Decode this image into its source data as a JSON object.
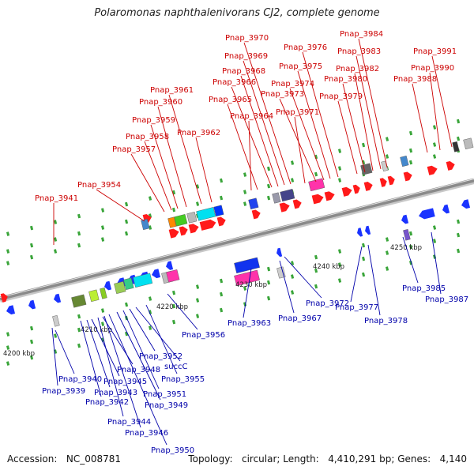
{
  "title": "Polaromonas naphthalenivorans CJ2, complete genome",
  "accession": {
    "label": "Accession:",
    "value": "NC_008781"
  },
  "topology": {
    "label": "Topology:",
    "value": "circular"
  },
  "length": {
    "label": "Length:",
    "value": "4,410,291 bp"
  },
  "genes": {
    "label": "Genes:",
    "value": "4,140"
  },
  "colors": {
    "forward_label": "#cc0000",
    "reverse_label": "#0000aa",
    "forward_gene": "#ff1a1a",
    "reverse_gene": "#1a33ff",
    "backbone": "#8a8a8a",
    "tick": "#3aa53a"
  },
  "scale_labels": [
    "4200 kbp",
    "4210 kbp",
    "4220 kbp",
    "4230 kbp",
    "4240 kbp",
    "4250 kbp"
  ],
  "forward_labels": [
    "Pnap_3941",
    "Pnap_3954",
    "Pnap_3957",
    "Pnap_3958",
    "Pnap_3959",
    "Pnap_3960",
    "Pnap_3961",
    "Pnap_3962",
    "Pnap_3964",
    "Pnap_3965",
    "Pnap_3966",
    "Pnap_3968",
    "Pnap_3969",
    "Pnap_3970",
    "Pnap_3971",
    "Pnap_3973",
    "Pnap_3974",
    "Pnap_3975",
    "Pnap_3976",
    "Pnap_3979",
    "Pnap_3980",
    "Pnap_3982",
    "Pnap_3983",
    "Pnap_3984",
    "Pnap_3988",
    "Pnap_3990",
    "Pnap_3991"
  ],
  "reverse_labels": [
    "Pnap_3940",
    "Pnap_3939",
    "Pnap_3943",
    "Pnap_3945",
    "Pnap_3942",
    "Pnap_3944",
    "Pnap_3946",
    "Pnap_3948",
    "Pnap_3949",
    "Pnap_3950",
    "Pnap_3951",
    "Pnap_3952",
    "succC",
    "Pnap_3955",
    "Pnap_3956",
    "Pnap_3963",
    "Pnap_3967",
    "Pnap_3972",
    "Pnap_3977",
    "Pnap_3978",
    "Pnap_3985",
    "Pnap_3987"
  ]
}
